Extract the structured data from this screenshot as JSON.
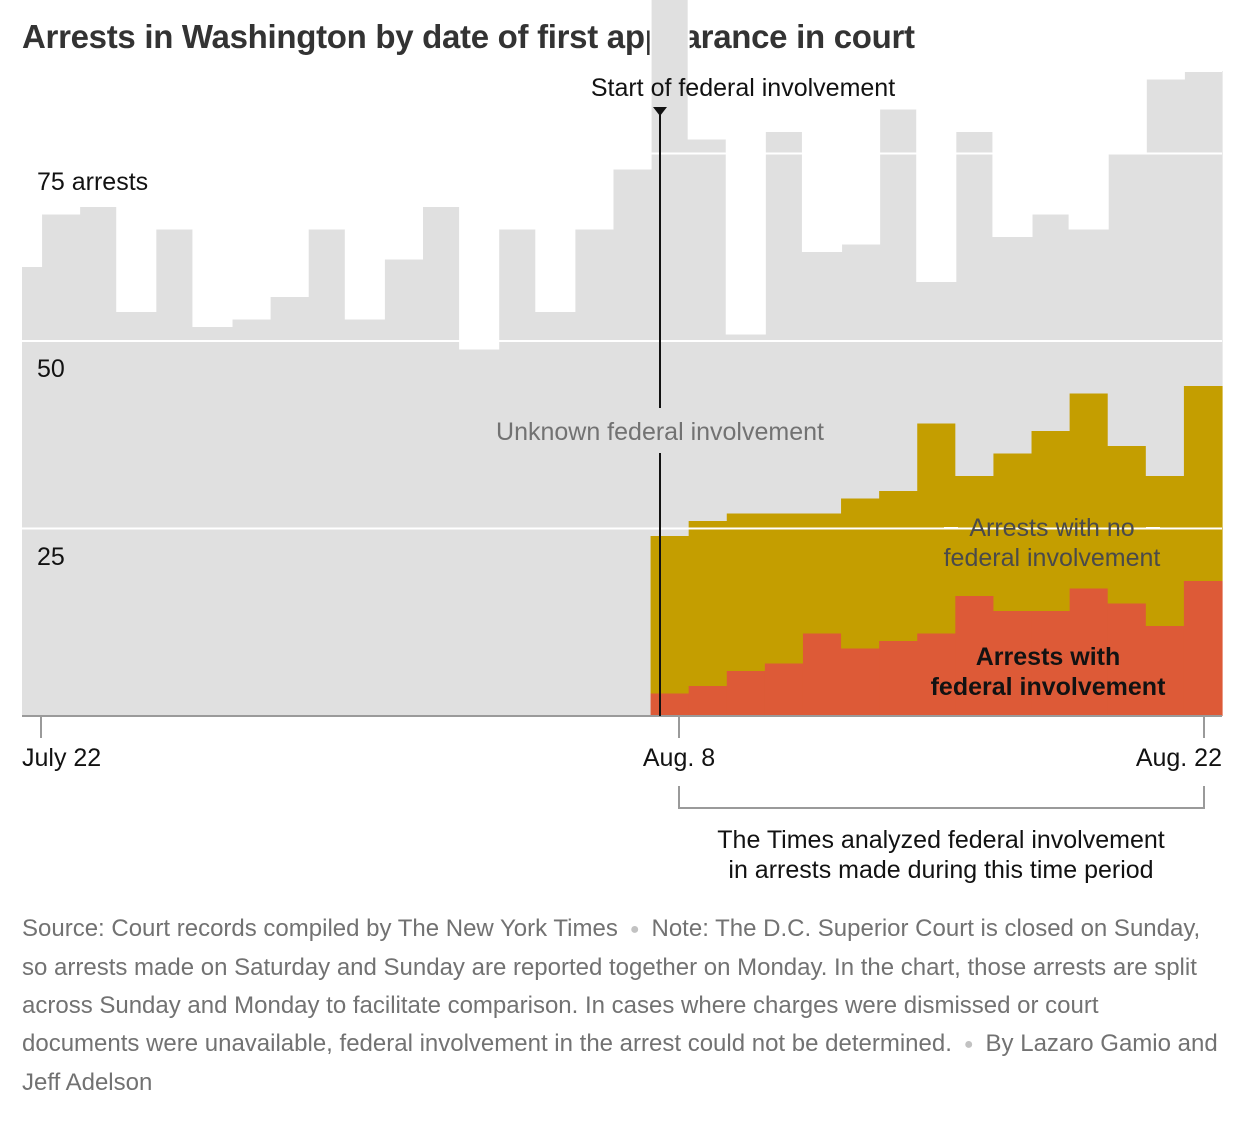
{
  "chart_data": {
    "type": "bar",
    "title": "Arrests in Washington by date of first appearance in court",
    "xlabel": "",
    "ylabel": "arrests",
    "ylim": [
      0,
      80
    ],
    "y_ticks": [
      {
        "value": 75,
        "label": "75 arrests"
      },
      {
        "value": 50,
        "label": "50"
      },
      {
        "value": 25,
        "label": "25"
      }
    ],
    "grid": true,
    "categories": [
      "July 22",
      "July 23",
      "July 24",
      "July 25",
      "July 26",
      "July 27",
      "July 28",
      "July 29",
      "July 30",
      "July 31",
      "Aug. 1",
      "Aug. 2",
      "Aug. 3",
      "Aug. 4",
      "Aug. 5",
      "Aug. 6",
      "Aug. 7",
      "Aug. 8",
      "Aug. 9",
      "Aug. 10",
      "Aug. 11",
      "Aug. 12",
      "Aug. 13",
      "Aug. 14",
      "Aug. 15",
      "Aug. 16",
      "Aug. 17",
      "Aug. 18",
      "Aug. 19",
      "Aug. 20",
      "Aug. 21",
      "Aug. 22"
    ],
    "x_tick_labels": [
      {
        "category": "July 22",
        "label": "July 22"
      },
      {
        "category": "Aug. 8",
        "label": "Aug. 8"
      },
      {
        "category": "Aug. 22",
        "label": "Aug. 22"
      }
    ],
    "series": [
      {
        "name": "Arrests with federal involvement",
        "color": "#dd5a37",
        "values": [
          0,
          0,
          0,
          0,
          0,
          0,
          0,
          0,
          0,
          0,
          0,
          0,
          0,
          0,
          0,
          0,
          0,
          3,
          4,
          6,
          7,
          11,
          9,
          10,
          11,
          16,
          14,
          14,
          17,
          15,
          12,
          18
        ]
      },
      {
        "name": "Arrests with no federal involvement",
        "color": "#c49e00",
        "values": [
          0,
          0,
          0,
          0,
          0,
          0,
          0,
          0,
          0,
          0,
          0,
          0,
          0,
          0,
          0,
          0,
          0,
          21,
          22,
          21,
          20,
          16,
          20,
          20,
          28,
          16,
          21,
          24,
          26,
          21,
          20,
          26
        ]
      },
      {
        "name": "Unknown federal involvement",
        "color": "#e0e0e0",
        "values": [
          60,
          67,
          68,
          54,
          65,
          52,
          53,
          56,
          65,
          53,
          61,
          68,
          49,
          65,
          54,
          65,
          73,
          72,
          51,
          24,
          51,
          35,
          34,
          51,
          19,
          46,
          29,
          29,
          22,
          39,
          53,
          42
        ]
      }
    ],
    "annotations": {
      "federal_start": "Start of federal involvement",
      "unknown_label": "Unknown federal involvement",
      "no_fed_line1": "Arrests with no",
      "no_fed_line2": "federal involvement",
      "fed_line1": "Arrests with",
      "fed_line2": "federal involvement",
      "bracket_line1": "The Times analyzed federal involvement",
      "bracket_line2": "in arrests made during this time period"
    }
  },
  "footnote": {
    "source": "Source: Court records compiled by The New York Times",
    "note": "Note: The D.C. Superior Court is closed on Sunday, so arrests made on Saturday and Sunday are reported together on Monday. In the chart, those arrests are split across Sunday and Monday to facilitate comparison. In cases where charges were dismissed or court documents were unavailable, federal involvement in the arrest could not be determined.",
    "byline": "By Lazaro Gamio and Jeff Adelson"
  }
}
